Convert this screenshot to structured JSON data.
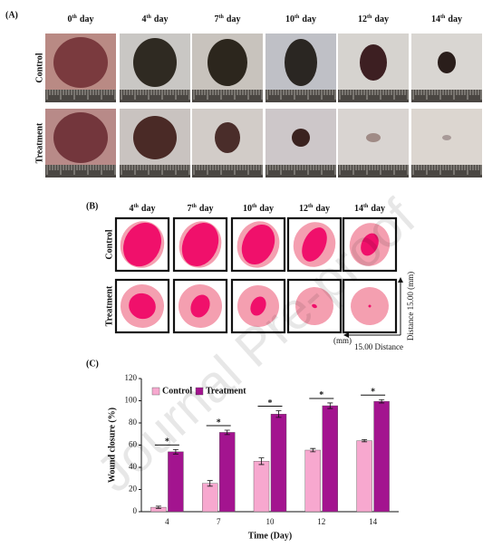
{
  "panel_a": {
    "label": "(A)",
    "days": [
      {
        "n": "0",
        "sup": "th",
        "word": "day"
      },
      {
        "n": "4",
        "sup": "th",
        "word": "day"
      },
      {
        "n": "7",
        "sup": "th",
        "word": "day"
      },
      {
        "n": "10",
        "sup": "th",
        "word": "day"
      },
      {
        "n": "12",
        "sup": "th",
        "word": "day"
      },
      {
        "n": "14",
        "sup": "th",
        "word": "day"
      }
    ],
    "rows": [
      "Control",
      "Treatment"
    ]
  },
  "panel_b": {
    "label": "(B)",
    "days": [
      {
        "n": "4",
        "sup": "th",
        "word": "day"
      },
      {
        "n": "7",
        "sup": "th",
        "word": "day"
      },
      {
        "n": "10",
        "sup": "th",
        "word": "day"
      },
      {
        "n": "12",
        "sup": "th",
        "word": "day"
      },
      {
        "n": "14",
        "sup": "th",
        "word": "day"
      }
    ],
    "rows": [
      "Control",
      "Treatment"
    ],
    "vertical_scale": "Distance 15.00 (mm)",
    "horizontal_scale": [
      "(mm)",
      "15.00 Distance"
    ]
  },
  "panel_c": {
    "label": "(C)"
  },
  "chart_data": {
    "type": "bar",
    "xlabel": "Time (Day)",
    "ylabel": "Wound closure (%)",
    "categories": [
      "4",
      "7",
      "10",
      "12",
      "14"
    ],
    "series": [
      {
        "name": "Control",
        "color": "#f7a8cf",
        "values": [
          4,
          25.5,
          45.5,
          55.5,
          64
        ],
        "errors": [
          1,
          2.5,
          3,
          1.5,
          1
        ]
      },
      {
        "name": "Treatment",
        "color": "#a3148f",
        "values": [
          54,
          71.5,
          88,
          95.5,
          99.5
        ],
        "errors": [
          2,
          2,
          3,
          2.5,
          1.5
        ]
      }
    ],
    "annotations": [
      "*",
      "*",
      "*",
      "*",
      "*"
    ],
    "ylim": [
      0,
      120
    ],
    "yticks": [
      0,
      20,
      40,
      60,
      80,
      100,
      120
    ],
    "legend": "top-left",
    "grid": false
  },
  "watermark": "Journal Pre-proof"
}
